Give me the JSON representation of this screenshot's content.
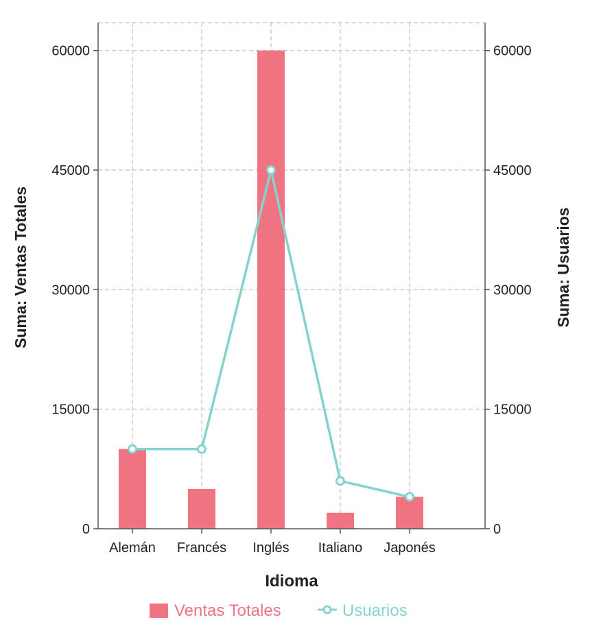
{
  "chart_data": {
    "type": "bar+line",
    "categories": [
      "Alemán",
      "Francés",
      "Inglés",
      "Italiano",
      "Japonés"
    ],
    "series": [
      {
        "name": "Ventas Totales",
        "type": "bar",
        "axis": "left",
        "color": "#f07382",
        "values": [
          10000,
          5000,
          60000,
          2000,
          4000
        ]
      },
      {
        "name": "Usuarios",
        "type": "line",
        "axis": "right",
        "color": "#84d3cc",
        "values": [
          10000,
          10000,
          45000,
          6000,
          4000
        ]
      }
    ],
    "xlabel": "Idioma",
    "ylabel": "Suma: Ventas Totales",
    "y2label": "Suma: Usuarios",
    "yticks": [
      "0",
      "15000",
      "30000",
      "45000",
      "60000"
    ],
    "ytick_values": [
      0,
      15000,
      30000,
      45000,
      60000
    ],
    "ylim": [
      0,
      63500
    ],
    "grid": true,
    "legend_position": "bottom"
  }
}
